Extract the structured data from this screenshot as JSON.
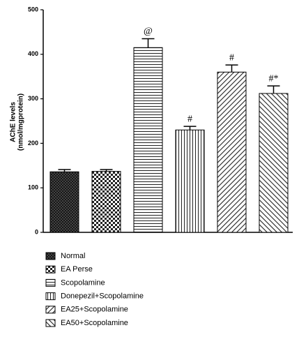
{
  "chart_data": {
    "type": "bar",
    "ylabel": [
      "AChE levels",
      "(nmol/mgprotein)"
    ],
    "categories": [
      "Normal",
      "EA Perse",
      "Scopolamine",
      "Donepezil+Scopolamine",
      "EA25+Scopolamine",
      "EA50+Scopolamine"
    ],
    "values": [
      136,
      137,
      415,
      230,
      360,
      312
    ],
    "errors": [
      5,
      4,
      20,
      8,
      16,
      17
    ],
    "annotations": [
      null,
      null,
      "@",
      "#",
      "#",
      "#*"
    ],
    "ylim": [
      0,
      500
    ],
    "yticks": [
      0,
      100,
      200,
      300,
      400,
      500
    ]
  }
}
